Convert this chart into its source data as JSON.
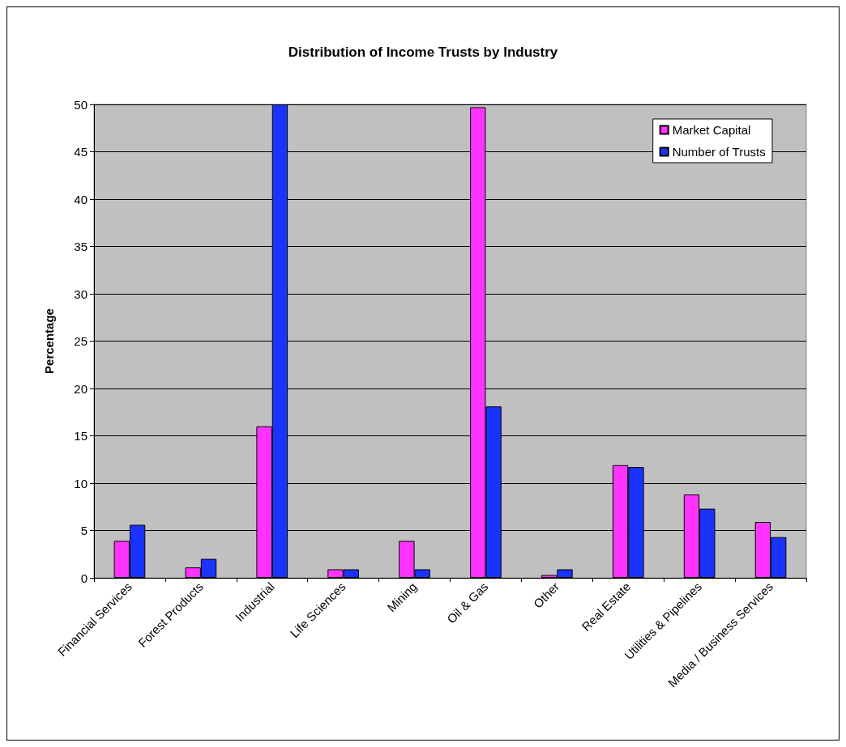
{
  "chart_data": {
    "type": "bar",
    "title": "Distribution of Income Trusts by Industry",
    "ylabel": "Percentage",
    "categories": [
      "Financial Services",
      "Forest Products",
      "Industrial",
      "Life Sciences",
      "Mining",
      "Oil & Gas",
      "Other",
      "Real Estate",
      "Utilities & Pipelines",
      "Media / Business Services"
    ],
    "series": [
      {
        "name": "Market Capital",
        "color": "#ff33ff",
        "values": [
          3.9,
          1.1,
          16.0,
          0.9,
          3.9,
          49.7,
          0.3,
          11.9,
          8.8,
          5.9
        ]
      },
      {
        "name": "Number of Trusts",
        "color": "#1a33ff",
        "values": [
          5.6,
          2.0,
          50.0,
          0.9,
          0.9,
          18.1,
          0.9,
          11.7,
          7.3,
          4.3
        ]
      }
    ],
    "ylim": [
      0,
      50
    ],
    "yticks": [
      0,
      5,
      10,
      15,
      20,
      25,
      30,
      35,
      40,
      45,
      50
    ],
    "grid": "y",
    "legend": "top right"
  }
}
